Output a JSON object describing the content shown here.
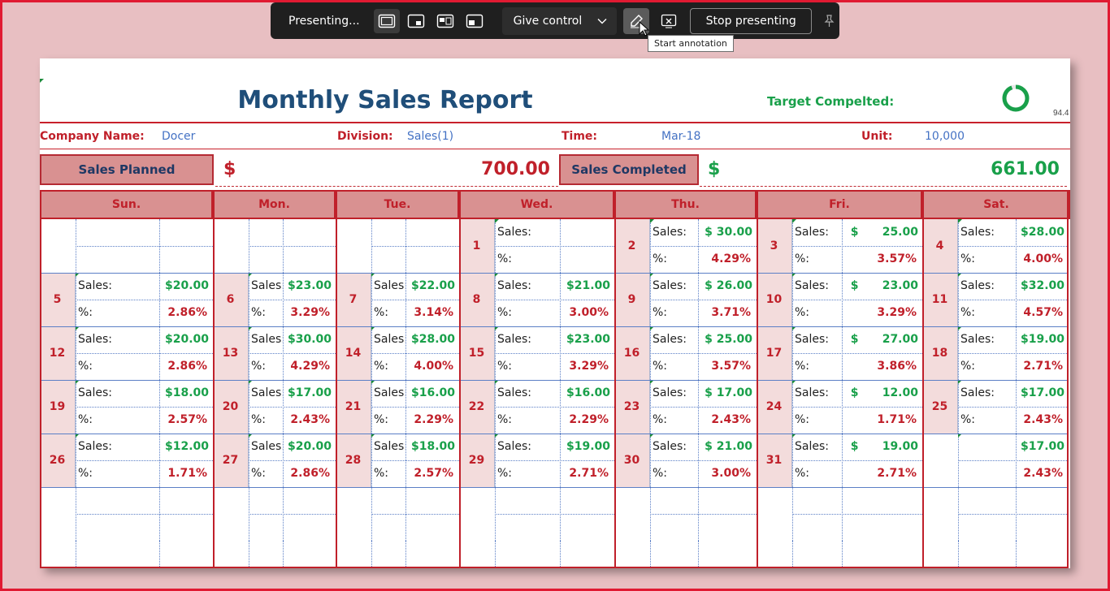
{
  "toolbar": {
    "status": "Presenting...",
    "give_control": "Give control",
    "stop": "Stop presenting",
    "tooltip": "Start annotation"
  },
  "report": {
    "title": "Monthly Sales Report",
    "target_label": "Target Compelted:",
    "target_value": "94.4",
    "company_label": "Company Name:",
    "company_value": "Docer",
    "division_label": "Division:",
    "division_value": "Sales(1)",
    "time_label": "Time:",
    "time_value": "Mar-18",
    "unit_label": "Unit:",
    "unit_value": "10,000",
    "planned_label": "Sales Planned",
    "planned_currency": "$",
    "planned_value": "700.00",
    "completed_label": "Sales Completed",
    "completed_currency": "$",
    "completed_value": "661.00",
    "target_fraction": 0.944
  },
  "calendar": {
    "days": [
      "Sun.",
      "Mon.",
      "Tue.",
      "Wed.",
      "Thu.",
      "Fri.",
      "Sat."
    ],
    "sales_label": "Sales:",
    "pct_label": "%:",
    "weeks": [
      [
        null,
        null,
        null,
        {
          "date": "1",
          "sales": "",
          "pct": ""
        },
        {
          "date": "2",
          "sales": "$ 30.00",
          "pct": "4.29%"
        },
        {
          "date": "3",
          "sales": "$      25.00",
          "pct": "3.57%"
        },
        {
          "date": "4",
          "sales": "$28.00",
          "pct": "4.00%"
        }
      ],
      [
        {
          "date": "5",
          "sales": "$20.00",
          "pct": "2.86%"
        },
        {
          "date": "6",
          "sales": "$23.00",
          "pct": "3.29%"
        },
        {
          "date": "7",
          "sales": "$22.00",
          "pct": "3.14%"
        },
        {
          "date": "8",
          "sales": "$21.00",
          "pct": "3.00%"
        },
        {
          "date": "9",
          "sales": "$ 26.00",
          "pct": "3.71%"
        },
        {
          "date": "10",
          "sales": "$      23.00",
          "pct": "3.29%"
        },
        {
          "date": "11",
          "sales": "$32.00",
          "pct": "4.57%"
        }
      ],
      [
        {
          "date": "12",
          "sales": "$20.00",
          "pct": "2.86%"
        },
        {
          "date": "13",
          "sales": "$30.00",
          "pct": "4.29%"
        },
        {
          "date": "14",
          "sales": "$28.00",
          "pct": "4.00%"
        },
        {
          "date": "15",
          "sales": "$23.00",
          "pct": "3.29%"
        },
        {
          "date": "16",
          "sales": "$ 25.00",
          "pct": "3.57%"
        },
        {
          "date": "17",
          "sales": "$      27.00",
          "pct": "3.86%"
        },
        {
          "date": "18",
          "sales": "$19.00",
          "pct": "2.71%"
        }
      ],
      [
        {
          "date": "19",
          "sales": "$18.00",
          "pct": "2.57%"
        },
        {
          "date": "20",
          "sales": "$17.00",
          "pct": "2.43%"
        },
        {
          "date": "21",
          "sales": "$16.00",
          "pct": "2.29%"
        },
        {
          "date": "22",
          "sales": "$16.00",
          "pct": "2.29%"
        },
        {
          "date": "23",
          "sales": "$ 17.00",
          "pct": "2.43%"
        },
        {
          "date": "24",
          "sales": "$      12.00",
          "pct": "1.71%"
        },
        {
          "date": "25",
          "sales": "$17.00",
          "pct": "2.43%"
        }
      ],
      [
        {
          "date": "26",
          "sales": "$12.00",
          "pct": "1.71%"
        },
        {
          "date": "27",
          "sales": "$20.00",
          "pct": "2.86%"
        },
        {
          "date": "28",
          "sales": "$18.00",
          "pct": "2.57%"
        },
        {
          "date": "29",
          "sales": "$19.00",
          "pct": "2.71%"
        },
        {
          "date": "30",
          "sales": "$ 21.00",
          "pct": "3.00%"
        },
        {
          "date": "31",
          "sales": "$      19.00",
          "pct": "2.71%"
        },
        {
          "date": "",
          "sales": "$17.00",
          "pct": "2.43%"
        }
      ]
    ]
  },
  "colors": {
    "accent_red": "#c0202a",
    "title_blue": "#1f4e79",
    "sales_green": "#19a04a",
    "header_fill": "#d99191"
  }
}
